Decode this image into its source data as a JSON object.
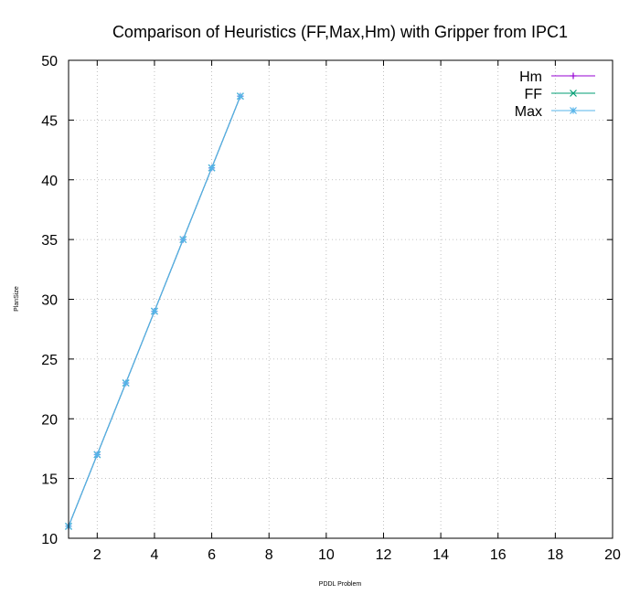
{
  "chart_data": {
    "type": "line",
    "title": "Comparison of Heuristics (FF,Max,Hm) with Gripper from IPC1",
    "xlabel": "PDDL Problem",
    "ylabel": "PlanSize",
    "xlim": [
      1,
      20
    ],
    "ylim": [
      10,
      50
    ],
    "xticks": [
      2,
      4,
      6,
      8,
      10,
      12,
      14,
      16,
      18,
      20
    ],
    "yticks": [
      10,
      15,
      20,
      25,
      30,
      35,
      40,
      45,
      50
    ],
    "grid": true,
    "legend_position": "top-right",
    "series": [
      {
        "name": "Hm",
        "color": "#9400d3",
        "marker": "plus",
        "x": [
          1,
          2,
          3,
          4,
          5,
          6,
          7
        ],
        "y": [
          11,
          17,
          23,
          29,
          35,
          41,
          47
        ]
      },
      {
        "name": "FF",
        "color": "#009e73",
        "marker": "cross",
        "x": [
          1,
          2,
          3,
          4,
          5,
          6,
          7
        ],
        "y": [
          11,
          17,
          23,
          29,
          35,
          41,
          47
        ]
      },
      {
        "name": "Max",
        "color": "#56b4e9",
        "marker": "asterisk",
        "x": [
          1,
          2,
          3,
          4,
          5,
          6,
          7
        ],
        "y": [
          11,
          17,
          23,
          29,
          35,
          41,
          47
        ]
      }
    ]
  }
}
